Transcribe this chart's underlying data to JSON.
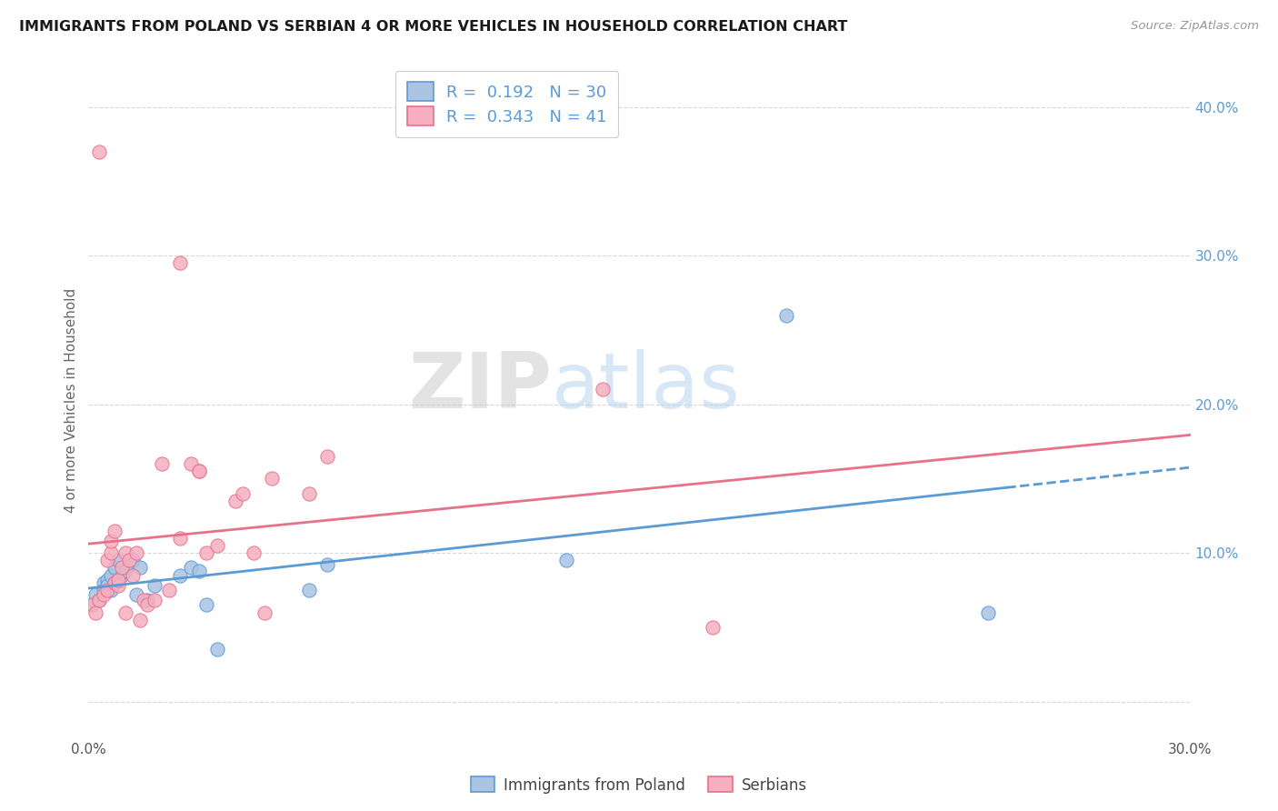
{
  "title": "IMMIGRANTS FROM POLAND VS SERBIAN 4 OR MORE VEHICLES IN HOUSEHOLD CORRELATION CHART",
  "source": "Source: ZipAtlas.com",
  "ylabel": "4 or more Vehicles in Household",
  "xmin": 0.0,
  "xmax": 0.3,
  "ymin": -0.025,
  "ymax": 0.43,
  "x_ticks": [
    0.0,
    0.05,
    0.1,
    0.15,
    0.2,
    0.25,
    0.3
  ],
  "x_tick_labels": [
    "0.0%",
    "",
    "",
    "",
    "",
    "",
    "30.0%"
  ],
  "y_ticks_right": [
    0.0,
    0.1,
    0.2,
    0.3,
    0.4
  ],
  "y_tick_labels_right": [
    "",
    "10.0%",
    "20.0%",
    "30.0%",
    "40.0%"
  ],
  "poland_color": "#aac4e2",
  "serbian_color": "#f5afc0",
  "poland_line_color": "#5b9bd5",
  "serbian_line_color": "#e8718a",
  "poland_R": 0.192,
  "poland_N": 30,
  "serbian_R": 0.343,
  "serbian_N": 41,
  "legend_label_poland": "Immigrants from Poland",
  "legend_label_serbian": "Serbians",
  "watermark_zip": "ZIP",
  "watermark_atlas": "atlas",
  "poland_x": [
    0.001,
    0.002,
    0.003,
    0.004,
    0.004,
    0.005,
    0.005,
    0.006,
    0.006,
    0.007,
    0.007,
    0.008,
    0.009,
    0.01,
    0.011,
    0.012,
    0.013,
    0.014,
    0.016,
    0.018,
    0.025,
    0.028,
    0.03,
    0.032,
    0.035,
    0.06,
    0.065,
    0.13,
    0.19,
    0.245
  ],
  "poland_y": [
    0.065,
    0.072,
    0.068,
    0.08,
    0.075,
    0.082,
    0.078,
    0.085,
    0.075,
    0.09,
    0.08,
    0.095,
    0.085,
    0.088,
    0.092,
    0.095,
    0.072,
    0.09,
    0.068,
    0.078,
    0.085,
    0.09,
    0.088,
    0.065,
    0.035,
    0.075,
    0.092,
    0.095,
    0.26,
    0.06
  ],
  "serbian_x": [
    0.001,
    0.002,
    0.003,
    0.003,
    0.004,
    0.005,
    0.005,
    0.006,
    0.006,
    0.007,
    0.007,
    0.008,
    0.008,
    0.009,
    0.01,
    0.01,
    0.011,
    0.012,
    0.013,
    0.014,
    0.015,
    0.016,
    0.018,
    0.02,
    0.022,
    0.025,
    0.028,
    0.03,
    0.032,
    0.035,
    0.04,
    0.042,
    0.045,
    0.048,
    0.05,
    0.06,
    0.065,
    0.14,
    0.17,
    0.025,
    0.03
  ],
  "serbian_y": [
    0.065,
    0.06,
    0.37,
    0.068,
    0.072,
    0.075,
    0.095,
    0.1,
    0.108,
    0.115,
    0.08,
    0.078,
    0.082,
    0.09,
    0.1,
    0.06,
    0.095,
    0.085,
    0.1,
    0.055,
    0.068,
    0.065,
    0.068,
    0.16,
    0.075,
    0.11,
    0.16,
    0.155,
    0.1,
    0.105,
    0.135,
    0.14,
    0.1,
    0.06,
    0.15,
    0.14,
    0.165,
    0.21,
    0.05,
    0.295,
    0.155
  ],
  "background_color": "#ffffff",
  "grid_color": "#d8d8d8"
}
